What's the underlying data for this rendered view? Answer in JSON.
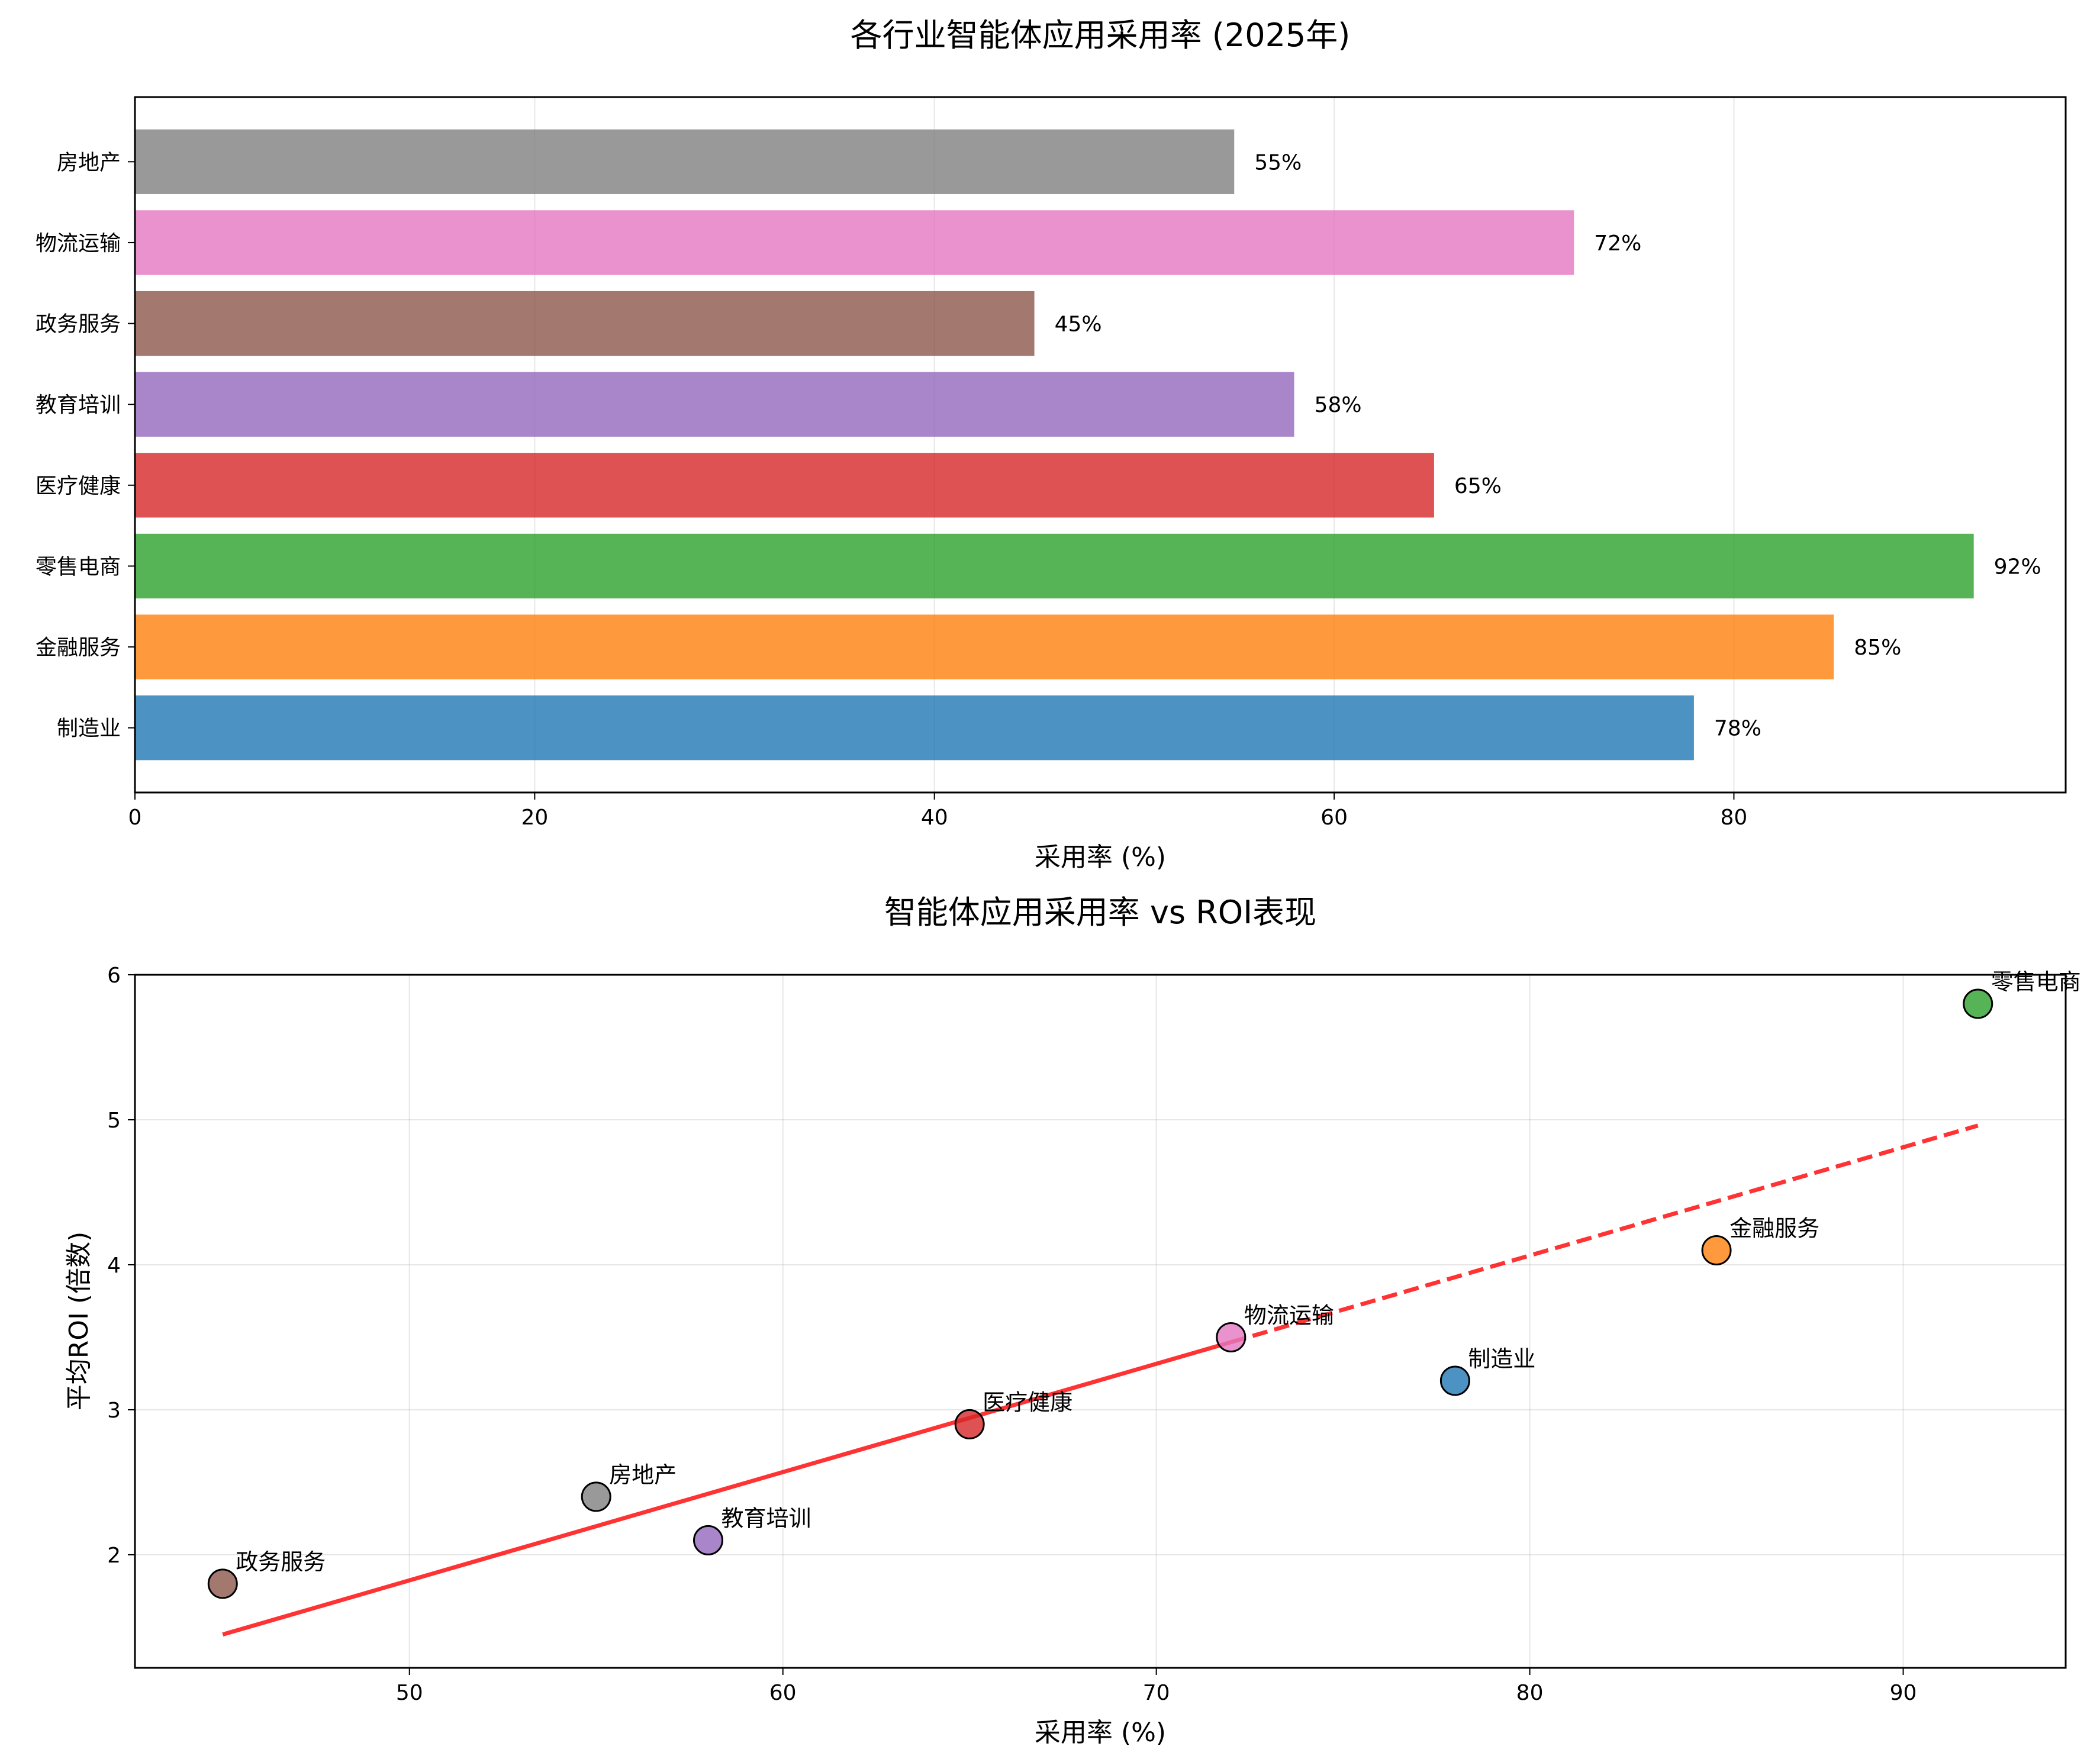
{
  "chart_data": [
    {
      "type": "bar",
      "orientation": "horizontal",
      "title": "各行业智能体应用采用率 (2025年)",
      "xlabel": "采用率 (%)",
      "ylabel": "",
      "xlim": [
        0,
        96.6
      ],
      "xticks": [
        0,
        20,
        40,
        60,
        80
      ],
      "grid": true,
      "categories": [
        "制造业",
        "金融服务",
        "零售电商",
        "医疗健康",
        "教育培训",
        "政务服务",
        "物流运输",
        "房地产"
      ],
      "values": [
        78,
        85,
        92,
        65,
        58,
        45,
        72,
        55
      ],
      "value_labels": [
        "78%",
        "85%",
        "92%",
        "65%",
        "58%",
        "45%",
        "72%",
        "55%"
      ],
      "colors": [
        "#1f77b4",
        "#ff7f0e",
        "#2ca02c",
        "#d62728",
        "#9467bd",
        "#8c564b",
        "#e377c2",
        "#7f7f7f"
      ]
    },
    {
      "type": "scatter",
      "title": "智能体应用采用率 vs ROI表现",
      "xlabel": "采用率 (%)",
      "ylabel": "平均ROI (倍数)",
      "xlim": [
        42.65,
        94.35
      ],
      "ylim": [
        1.22,
        6.0
      ],
      "xticks": [
        50,
        60,
        70,
        80,
        90
      ],
      "yticks": [
        2,
        3,
        4,
        5,
        6
      ],
      "grid": true,
      "points": [
        {
          "label": "制造业",
          "x": 78,
          "y": 3.2,
          "color": "#1f77b4"
        },
        {
          "label": "金融服务",
          "x": 85,
          "y": 4.1,
          "color": "#ff7f0e"
        },
        {
          "label": "零售电商",
          "x": 92,
          "y": 5.8,
          "color": "#2ca02c"
        },
        {
          "label": "医疗健康",
          "x": 65,
          "y": 2.9,
          "color": "#d62728"
        },
        {
          "label": "教育培训",
          "x": 58,
          "y": 2.1,
          "color": "#9467bd"
        },
        {
          "label": "政务服务",
          "x": 45,
          "y": 1.8,
          "color": "#8c564b"
        },
        {
          "label": "物流运输",
          "x": 72,
          "y": 3.5,
          "color": "#e377c2"
        },
        {
          "label": "房地产",
          "x": 55,
          "y": 2.4,
          "color": "#7f7f7f"
        }
      ],
      "trendline": {
        "x0": 45,
        "y0": 1.45,
        "x1": 92,
        "y1": 4.96,
        "color": "#ff0000",
        "dashed_from_x": 72
      }
    }
  ]
}
